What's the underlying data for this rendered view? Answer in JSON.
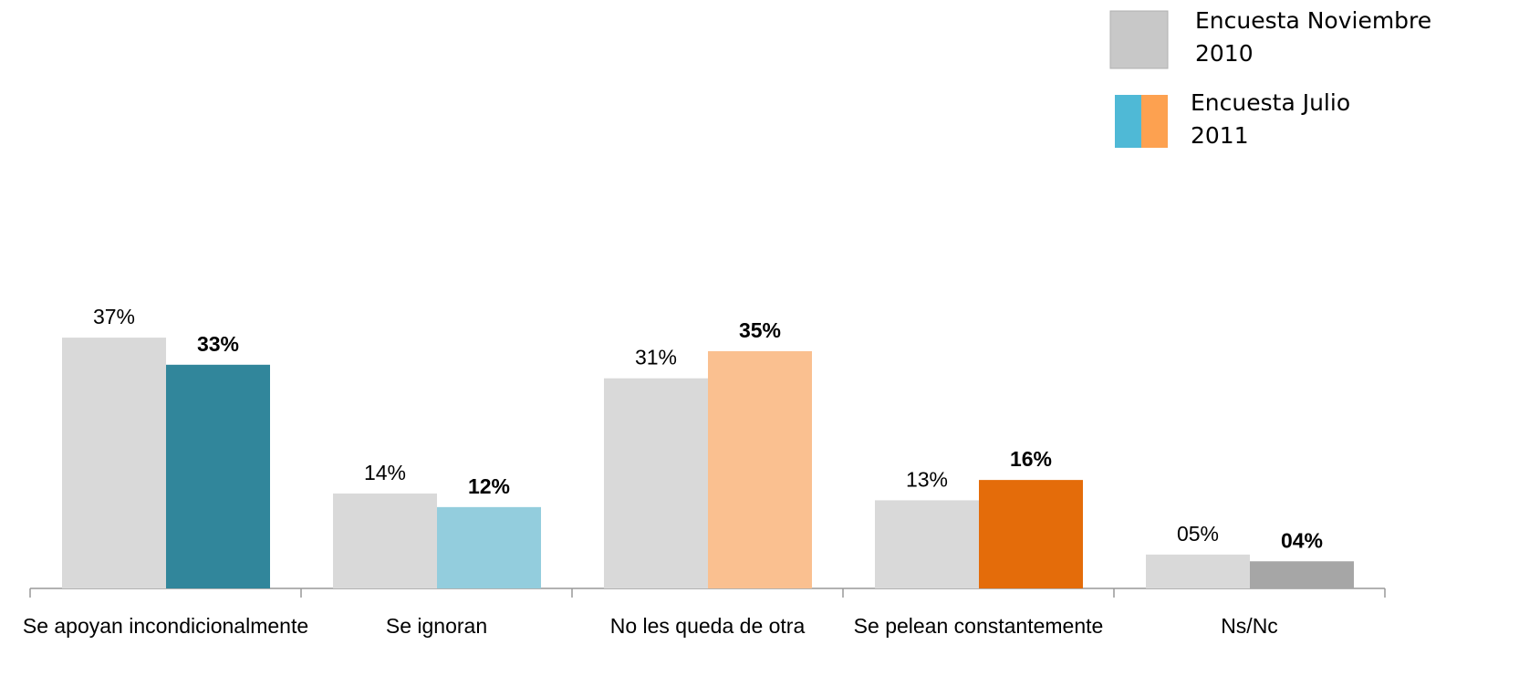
{
  "chart_data": {
    "type": "bar",
    "categories": [
      "Se apoyan incondicionalmente",
      "Se ignoran",
      "No les queda de otra",
      "Se pelean constantemente",
      "Ns/Nc"
    ],
    "series": [
      {
        "name": "Encuesta Noviembre 2010",
        "color": "#d9d9d9",
        "legend_colors": [
          "#c8c8c8"
        ],
        "values": [
          37,
          14,
          31,
          13,
          5
        ],
        "value_labels": [
          "37%",
          "14%",
          "31%",
          "13%",
          "05%"
        ],
        "label_weight": "normal"
      },
      {
        "name": "Encuesta Julio 2011",
        "colors": [
          "#31869b",
          "#93cddd",
          "#fac090",
          "#e46c0a",
          "#a6a6a6"
        ],
        "legend_colors": [
          "#4fb9d6",
          "#fda150"
        ],
        "values": [
          33,
          12,
          35,
          16,
          4
        ],
        "value_labels": [
          "33%",
          "12%",
          "35%",
          "16%",
          "04%"
        ],
        "label_weight": "bold"
      }
    ],
    "legend": "top-right"
  }
}
